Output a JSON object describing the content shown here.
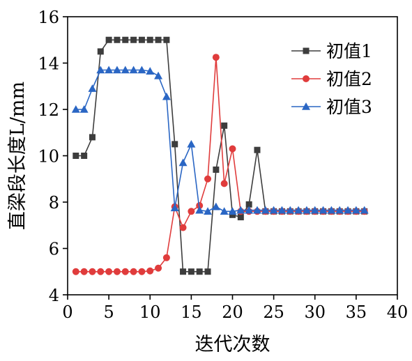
{
  "chart_data": {
    "type": "line",
    "title": "",
    "xlabel": "迭代次数",
    "ylabel": "直梁段长度L/mm",
    "xlim": [
      0,
      40
    ],
    "ylim": [
      4,
      16
    ],
    "xticks": [
      0,
      5,
      10,
      15,
      20,
      25,
      30,
      35,
      40
    ],
    "yticks": [
      4,
      6,
      8,
      10,
      12,
      14,
      16
    ],
    "grid": false,
    "legend_position": "top-right",
    "x": [
      1,
      2,
      3,
      4,
      5,
      6,
      7,
      8,
      9,
      10,
      11,
      12,
      13,
      14,
      15,
      16,
      17,
      18,
      19,
      20,
      21,
      22,
      23,
      24,
      25,
      26,
      27,
      28,
      29,
      30,
      31,
      32,
      33,
      34,
      35,
      36
    ],
    "series": [
      {
        "name": "初值1",
        "color": "#3d3d3d",
        "marker": "square",
        "values": [
          10.0,
          10.0,
          10.8,
          14.5,
          15.0,
          15.0,
          15.0,
          15.0,
          15.0,
          15.0,
          15.0,
          15.0,
          10.5,
          5.0,
          5.0,
          5.0,
          5.0,
          9.4,
          11.3,
          7.45,
          7.35,
          7.9,
          10.25,
          7.6,
          7.6,
          7.6,
          7.6,
          7.6,
          7.6,
          7.6,
          7.6,
          7.6,
          7.6,
          7.6,
          7.6,
          7.6
        ]
      },
      {
        "name": "初值2",
        "color": "#e03c3c",
        "marker": "circle",
        "values": [
          5.0,
          5.0,
          5.0,
          5.0,
          5.0,
          5.0,
          5.0,
          5.0,
          5.0,
          5.03,
          5.15,
          5.6,
          7.8,
          6.9,
          7.6,
          7.85,
          9.0,
          14.25,
          8.8,
          10.3,
          7.6,
          7.6,
          7.6,
          7.6,
          7.6,
          7.6,
          7.6,
          7.6,
          7.6,
          7.6,
          7.6,
          7.6,
          7.6,
          7.6,
          7.6,
          7.6
        ]
      },
      {
        "name": "初值3",
        "color": "#2a66c4",
        "marker": "triangle",
        "values": [
          12.0,
          12.0,
          12.9,
          13.7,
          13.7,
          13.7,
          13.7,
          13.7,
          13.7,
          13.65,
          13.45,
          12.55,
          7.75,
          9.7,
          10.5,
          7.65,
          7.6,
          7.8,
          7.6,
          7.6,
          7.65,
          7.65,
          7.65,
          7.65,
          7.65,
          7.65,
          7.65,
          7.65,
          7.65,
          7.65,
          7.65,
          7.65,
          7.65,
          7.65,
          7.65,
          7.65
        ]
      }
    ]
  }
}
